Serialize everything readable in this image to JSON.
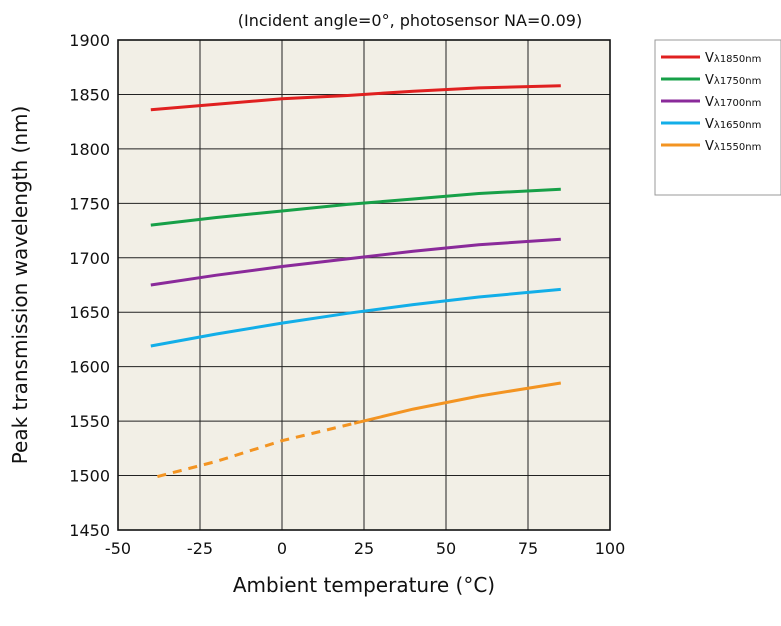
{
  "chart_data": {
    "type": "line",
    "subtitle": "(Incident angle=0°, photosensor NA=0.09)",
    "xlabel": "Ambient temperature (°C)",
    "ylabel": "Peak transmission wavelength (nm)",
    "xlim": [
      -50,
      100
    ],
    "ylim": [
      1450,
      1900
    ],
    "xticks": [
      -50,
      -25,
      0,
      25,
      50,
      75,
      100
    ],
    "yticks": [
      1450,
      1500,
      1550,
      1600,
      1650,
      1700,
      1750,
      1800,
      1850,
      1900
    ],
    "grid": true,
    "legend_position": "right",
    "plot_background": "#f2efe6",
    "series": [
      {
        "name": "Vλ1850nm",
        "label_main": "V",
        "label_sub": "λ1850nm",
        "color": "#e02020",
        "x": [
          -40,
          -20,
          0,
          20,
          40,
          60,
          85
        ],
        "y": [
          1836,
          1841,
          1846,
          1849,
          1853,
          1856,
          1858
        ]
      },
      {
        "name": "Vλ1750nm",
        "label_main": "V",
        "label_sub": "λ1750nm",
        "color": "#17a048",
        "x": [
          -40,
          -20,
          0,
          20,
          40,
          60,
          85
        ],
        "y": [
          1730,
          1737,
          1743,
          1749,
          1754,
          1759,
          1763
        ]
      },
      {
        "name": "Vλ1700nm",
        "label_main": "V",
        "label_sub": "λ1700nm",
        "color": "#8a2a9a",
        "x": [
          -40,
          -20,
          0,
          20,
          40,
          60,
          85
        ],
        "y": [
          1675,
          1684,
          1692,
          1699,
          1706,
          1712,
          1717
        ]
      },
      {
        "name": "Vλ1650nm",
        "label_main": "V",
        "label_sub": "λ1650nm",
        "color": "#12aee8",
        "x": [
          -40,
          -20,
          0,
          20,
          40,
          60,
          85
        ],
        "y": [
          1619,
          1630,
          1640,
          1649,
          1657,
          1664,
          1671
        ]
      },
      {
        "name": "Vλ1550nm",
        "label_main": "V",
        "label_sub": "λ1550nm",
        "color": "#f39422",
        "x": [
          -38,
          -20,
          0,
          22,
          40,
          60,
          85
        ],
        "y": [
          1499,
          1513,
          1532,
          1548,
          1561,
          1573,
          1585
        ],
        "dashed_until_x": 22
      }
    ]
  }
}
